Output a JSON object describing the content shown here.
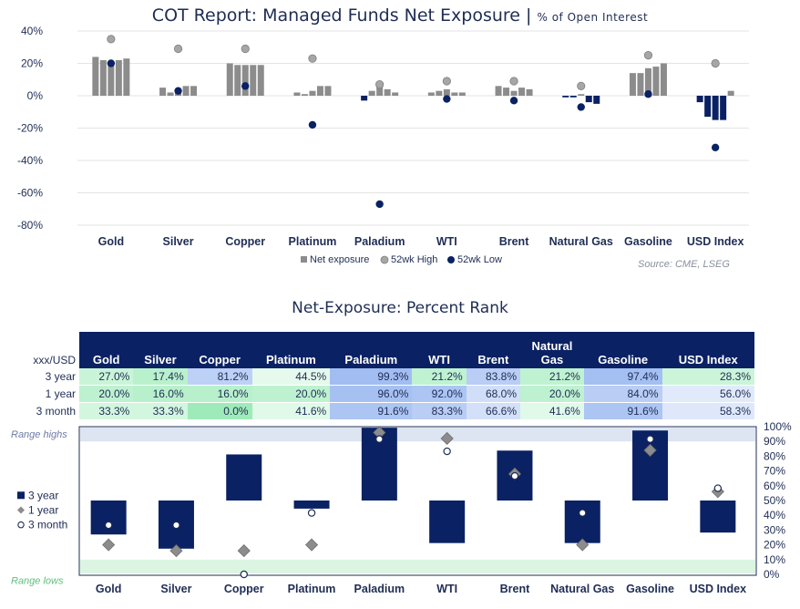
{
  "top_chart": {
    "title": "COT Report: Managed Funds Net Exposure",
    "subtitle": "% of Open Interest",
    "source": "Source: CME, LSEG",
    "legend": [
      "Net exposure",
      "52wk High",
      "52wk Low"
    ],
    "colors": {
      "net": "#8c8c8c",
      "high": "#a6a6a6",
      "low": "#0a2163"
    }
  },
  "bottom_chart": {
    "title": "Net-Exposure: Percent Rank",
    "corner_label": "xxx/USD",
    "row_labels": [
      "3 year",
      "1 year",
      "3 month"
    ],
    "range_highs_label": "Range highs",
    "range_lows_label": "Range lows",
    "legend": [
      "3 year",
      "1 year",
      "3 month"
    ]
  },
  "chart_data": [
    {
      "type": "bar",
      "title": "COT Report: Managed Funds Net Exposure",
      "subtitle": "% of Open Interest",
      "categories": [
        "Gold",
        "Silver",
        "Copper",
        "Platinum",
        "Paladium",
        "WTI",
        "Brent",
        "Natural Gas",
        "Gasoline",
        "USD Index"
      ],
      "y_ticks": [
        "40%",
        "20%",
        "0%",
        "-20%",
        "-40%",
        "-60%",
        "-80%"
      ],
      "ylim": [
        -80,
        40
      ],
      "grid": true,
      "legend_position": "bottom",
      "series": [
        {
          "name": "Net exposure",
          "type": "bar",
          "values": [
            [
              24,
              22,
              21,
              22,
              23
            ],
            [
              5,
              2,
              3,
              6,
              6
            ],
            [
              20,
              19,
              19,
              19,
              19
            ],
            [
              2,
              1,
              3,
              6,
              6
            ],
            [
              -3,
              3,
              7,
              4,
              2
            ],
            [
              2,
              3,
              4,
              2,
              2
            ],
            [
              6,
              5,
              3,
              5,
              4
            ],
            [
              -1,
              -1,
              1,
              -4,
              -5
            ],
            [
              14,
              14,
              17,
              18,
              20
            ],
            [
              -4,
              -13,
              -15,
              -15,
              3
            ]
          ]
        },
        {
          "name": "52wk High",
          "type": "point",
          "values": [
            35,
            29,
            29,
            23,
            7,
            9,
            9,
            6,
            25,
            20
          ]
        },
        {
          "name": "52wk Low",
          "type": "point",
          "values": [
            20,
            3,
            6,
            -18,
            -67,
            -2,
            -3,
            -7,
            1,
            -32
          ]
        }
      ]
    },
    {
      "type": "table",
      "title": "Net-Exposure: Percent Rank",
      "columns": [
        "Gold",
        "Silver",
        "Copper",
        "Platinum",
        "Paladium",
        "WTI",
        "Brent",
        "Natural Gas",
        "Gasoline",
        "USD Index"
      ],
      "rows": [
        {
          "label": "3 year",
          "values": [
            "27.0%",
            "17.4%",
            "81.2%",
            "44.5%",
            "99.3%",
            "21.2%",
            "83.8%",
            "21.2%",
            "97.4%",
            "28.3%"
          ]
        },
        {
          "label": "1 year",
          "values": [
            "20.0%",
            "16.0%",
            "16.0%",
            "20.0%",
            "96.0%",
            "92.0%",
            "68.0%",
            "20.0%",
            "84.0%",
            "56.0%"
          ]
        },
        {
          "label": "3 month",
          "values": [
            "33.3%",
            "33.3%",
            "0.0%",
            "41.6%",
            "91.6%",
            "83.3%",
            "66.6%",
            "41.6%",
            "91.6%",
            "58.3%"
          ]
        }
      ]
    },
    {
      "type": "bar",
      "categories": [
        "Gold",
        "Silver",
        "Copper",
        "Platinum",
        "Paladium",
        "WTI",
        "Brent",
        "Natural Gas",
        "Gasoline",
        "USD Index"
      ],
      "y_ticks": [
        "100%",
        "90%",
        "80%",
        "70%",
        "60%",
        "50%",
        "40%",
        "30%",
        "20%",
        "10%",
        "0%"
      ],
      "ylim": [
        0,
        100
      ],
      "baseline": 50,
      "legend_position": "left",
      "series": [
        {
          "name": "3 year",
          "type": "bar",
          "values": [
            27.0,
            17.4,
            81.2,
            44.5,
            99.3,
            21.2,
            83.8,
            21.2,
            97.4,
            28.3
          ]
        },
        {
          "name": "1 year",
          "type": "point",
          "values": [
            20.0,
            16.0,
            16.0,
            20.0,
            96.0,
            92.0,
            68.0,
            20.0,
            84.0,
            56.0
          ]
        },
        {
          "name": "3 month",
          "type": "point",
          "values": [
            33.3,
            33.3,
            0.0,
            41.6,
            91.6,
            83.3,
            66.6,
            41.6,
            91.6,
            58.3
          ]
        }
      ]
    }
  ]
}
